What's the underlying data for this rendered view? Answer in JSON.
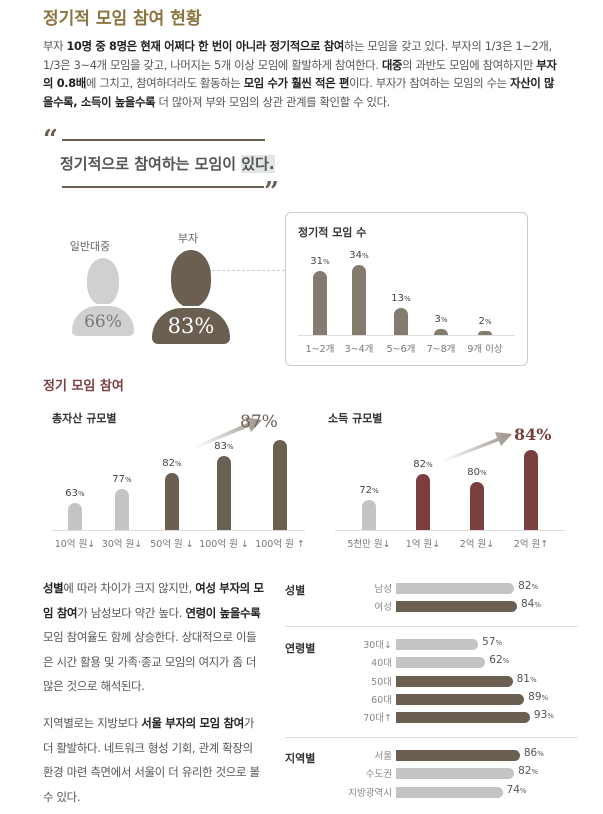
{
  "title": "정기적 모임 참여 현황",
  "intro": [
    {
      "t": "부자 ",
      "b": false
    },
    {
      "t": "10명 중 8명은 현재 어쩌다 한 번이 아니라 정기적으로 참여",
      "b": true
    },
    {
      "t": "하는 모임을 갖고 있다. 부자의 1/3은 1~2개, 1/3은 3~4개 모임을 갖고, 나머지는 5개 이상 모임에 활발하게 참여한다. ",
      "b": false
    },
    {
      "t": "대중",
      "b": true
    },
    {
      "t": "의 과반도 모임에 참여하지만 ",
      "b": false
    },
    {
      "t": "부자의 0.8배",
      "b": true
    },
    {
      "t": "에 그치고, 참여하더라도 활동하는 ",
      "b": false
    },
    {
      "t": "모임 수가 훨씬 적은 편",
      "b": true
    },
    {
      "t": "이다. 부자가 참여하는 모임의 수는 ",
      "b": false
    },
    {
      "t": "자산이 많을수록, 소득이 높을수록",
      "b": true
    },
    {
      "t": " 더 많아져 부와 모임의 상관 관계를 확인할 수 있다.",
      "b": false
    }
  ],
  "quote": {
    "main": "정기적으로 참여하는 모임이 ",
    "highlight": "있다."
  },
  "people": {
    "public_label": "일반대중",
    "public_value": "66%",
    "rich_label": "부자",
    "rich_value": "83%"
  },
  "colors": {
    "title": "#8b7440",
    "dark": "#6b5f52",
    "gray": "#c4c4c4",
    "maroon": "#7b3f3f"
  },
  "chart_data": [
    {
      "type": "bar",
      "title": "정기적 모임 수",
      "categories": [
        "1~2개",
        "3~4개",
        "5~6개",
        "7~8개",
        "9개 이상"
      ],
      "values": [
        31,
        34,
        13,
        3,
        2
      ],
      "unit": "%"
    },
    {
      "type": "bar",
      "title": "총자산 규모별",
      "categories": [
        "10억 원↓",
        "30억 원↓",
        "50억 원 ↓",
        "100억 원 ↓",
        "100억 원 ↑"
      ],
      "values": [
        63,
        77,
        82,
        83,
        87
      ],
      "unit": "%",
      "highlight": "87%"
    },
    {
      "type": "bar",
      "title": "소득 규모별",
      "categories": [
        "5천만 원↓",
        "1억 원↓",
        "2억 원↓",
        "2억 원↑"
      ],
      "values": [
        72,
        82,
        80,
        84
      ],
      "unit": "%",
      "highlight": "84%"
    },
    {
      "type": "bar",
      "orientation": "horizontal",
      "groups": [
        {
          "name": "성별",
          "items": [
            {
              "label": "남성",
              "value": 82,
              "hl": false
            },
            {
              "label": "여성",
              "value": 84,
              "hl": true
            }
          ]
        },
        {
          "name": "연령별",
          "items": [
            {
              "label": "30대↓",
              "value": 57,
              "hl": false
            },
            {
              "label": "40대",
              "value": 62,
              "hl": false
            },
            {
              "label": "50대",
              "value": 81,
              "hl": true
            },
            {
              "label": "60대",
              "value": 89,
              "hl": true
            },
            {
              "label": "70대↑",
              "value": 93,
              "hl": true
            }
          ]
        },
        {
          "name": "지역별",
          "items": [
            {
              "label": "서울",
              "value": 86,
              "hl": true
            },
            {
              "label": "수도권",
              "value": 82,
              "hl": false
            },
            {
              "label": "지방광역시",
              "value": 74,
              "hl": false
            }
          ]
        }
      ],
      "unit": "%"
    }
  ],
  "section_title": "정기 모임 참여",
  "bottom_text": [
    [
      {
        "t": "성별",
        "b": true
      },
      {
        "t": "에 따라 차이가 크지 않지만, ",
        "b": false
      },
      {
        "t": "여성 부자의 모임 참여",
        "b": true
      },
      {
        "t": "가 남성보다 약간 높다. ",
        "b": false
      },
      {
        "t": "연령이 높을수록",
        "b": true
      },
      {
        "t": " 모임 참여율도 함께 상승한다. 상대적으로 이들은 시간 활용 및 가족·종교 모임의 여지가 좀 더 많은 것으로 해석된다.",
        "b": false
      }
    ],
    [
      {
        "t": "지역별로는 지방보다 ",
        "b": false
      },
      {
        "t": "서울 부자의 모임 참여",
        "b": true
      },
      {
        "t": "가 더 활발하다. 네트워크 형성 기회, 관계 확장의 환경 마련 측면에서 서울이 더 유리한 것으로 볼 수 있다.",
        "b": false
      }
    ]
  ]
}
